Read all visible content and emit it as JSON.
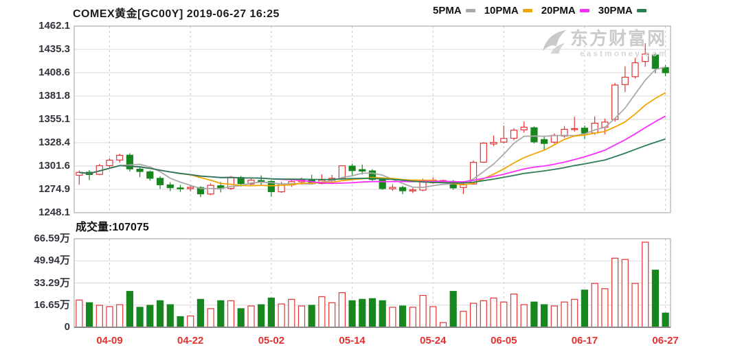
{
  "header": {
    "title": "COMEX黄金[GC00Y] 2019-06-27 16:25"
  },
  "legend": {
    "items": [
      {
        "label": "5PMA",
        "color": "#a9a9a9"
      },
      {
        "label": "10PMA",
        "color": "#f0a500"
      },
      {
        "label": "20PMA",
        "color": "#fb2ffb"
      },
      {
        "label": "30PMA",
        "color": "#2a7d55"
      }
    ]
  },
  "watermark": {
    "brand": "东方财富网",
    "domain": "eastmoney.com"
  },
  "volume_panel": {
    "label": "成交量:107075"
  },
  "price_panel": {
    "y_axis_labels": [
      "1462.1",
      "1435.3",
      "1408.6",
      "1381.8",
      "1355.1",
      "1328.4",
      "1301.6",
      "1274.9",
      "1248.1"
    ]
  },
  "volume_axis_labels": [
    "66.59万",
    "49.94万",
    "33.29万",
    "16.65万",
    "0"
  ],
  "x_axis": {
    "labels": [
      "04-09",
      "04-22",
      "05-02",
      "05-14",
      "05-24",
      "06-05",
      "06-17",
      "06-27"
    ],
    "tick_indices": [
      3,
      11,
      19,
      27,
      35,
      42,
      50,
      58
    ]
  },
  "colors": {
    "up": "#e53333",
    "down": "#17861f",
    "grid": "#d9d9d9",
    "dashed_grid": "#c9c9c9",
    "border": "#9e9e9e",
    "y_label": "#33333d",
    "x_label": "#e43030",
    "watermark": "#cbcbcb"
  },
  "chart_data": {
    "type": "candlestick+volume",
    "symbol": "COMEX黄金[GC00Y]",
    "as_of": "2019-06-27 16:25",
    "price_axis": {
      "min": 1248.1,
      "max": 1462.1,
      "ticks": [
        1462.1,
        1435.3,
        1408.6,
        1381.8,
        1355.1,
        1328.4,
        1301.6,
        1274.9,
        1248.1
      ]
    },
    "volume_axis": {
      "min": 0,
      "max": 66.59,
      "unit": "万",
      "ticks": [
        66.59,
        49.94,
        33.29,
        16.65,
        0
      ]
    },
    "ma_periods": [
      5,
      10,
      20,
      30
    ],
    "latest_volume": 107075,
    "grid": true,
    "candle_fields": [
      "date",
      "open",
      "high",
      "low",
      "close",
      "volume_wan"
    ],
    "candles": [
      [
        "04-04",
        1291.0,
        1296.5,
        1280.1,
        1294.3,
        20.5
      ],
      [
        "04-05",
        1294.5,
        1297.0,
        1285.5,
        1291.8,
        18.5
      ],
      [
        "04-08",
        1292.0,
        1303.9,
        1291.1,
        1301.9,
        16.5
      ],
      [
        "04-09",
        1302.0,
        1310.4,
        1300.1,
        1308.3,
        15.5
      ],
      [
        "04-10",
        1308.5,
        1315.7,
        1305.6,
        1313.9,
        17.0
      ],
      [
        "04-11",
        1314.0,
        1316.3,
        1295.2,
        1298.3,
        27.0
      ],
      [
        "04-12",
        1298.0,
        1300.5,
        1288.8,
        1295.3,
        15.0
      ],
      [
        "04-15",
        1295.0,
        1296.4,
        1284.9,
        1287.6,
        16.5
      ],
      [
        "04-16",
        1287.5,
        1289.8,
        1275.4,
        1280.1,
        20.0
      ],
      [
        "04-17",
        1280.0,
        1283.1,
        1272.7,
        1276.8,
        17.0
      ],
      [
        "04-18",
        1276.5,
        1280.0,
        1271.9,
        1275.7,
        8.0
      ],
      [
        "04-22",
        1275.7,
        1280.3,
        1272.5,
        1277.2,
        8.5
      ],
      [
        "04-23",
        1277.0,
        1278.4,
        1265.9,
        1269.7,
        21.0
      ],
      [
        "04-24",
        1269.5,
        1281.5,
        1268.2,
        1279.4,
        14.0
      ],
      [
        "04-25",
        1279.0,
        1283.3,
        1271.4,
        1275.9,
        20.0
      ],
      [
        "04-26",
        1276.0,
        1290.1,
        1274.2,
        1288.8,
        20.0
      ],
      [
        "04-29",
        1288.5,
        1290.3,
        1278.0,
        1281.4,
        14.0
      ],
      [
        "04-30",
        1281.0,
        1287.7,
        1279.1,
        1285.3,
        16.0
      ],
      [
        "05-01",
        1285.0,
        1291.0,
        1279.8,
        1284.2,
        17.0
      ],
      [
        "05-02",
        1284.0,
        1285.2,
        1266.6,
        1272.2,
        22.0
      ],
      [
        "05-03",
        1272.0,
        1283.4,
        1270.9,
        1281.2,
        17.5
      ],
      [
        "05-06",
        1280.0,
        1286.0,
        1277.7,
        1283.7,
        21.0
      ],
      [
        "05-07",
        1283.5,
        1288.5,
        1280.3,
        1285.6,
        16.0
      ],
      [
        "05-08",
        1285.5,
        1291.7,
        1281.0,
        1281.4,
        16.5
      ],
      [
        "05-09",
        1281.5,
        1292.1,
        1280.5,
        1285.3,
        23.0
      ],
      [
        "05-10",
        1285.0,
        1291.4,
        1280.9,
        1287.4,
        18.5
      ],
      [
        "05-13",
        1287.5,
        1302.0,
        1286.1,
        1301.8,
        26.0
      ],
      [
        "05-14",
        1301.5,
        1304.2,
        1290.2,
        1296.3,
        20.0
      ],
      [
        "05-15",
        1297.5,
        1303.3,
        1291.9,
        1295.8,
        21.0
      ],
      [
        "05-16",
        1296.0,
        1298.0,
        1284.6,
        1286.2,
        21.5
      ],
      [
        "05-17",
        1286.0,
        1288.4,
        1274.3,
        1275.7,
        20.0
      ],
      [
        "05-20",
        1275.5,
        1280.6,
        1273.2,
        1277.1,
        15.0
      ],
      [
        "05-21",
        1277.0,
        1278.9,
        1269.3,
        1273.2,
        16.0
      ],
      [
        "05-22",
        1273.0,
        1276.5,
        1270.6,
        1274.2,
        15.0
      ],
      [
        "05-23",
        1274.0,
        1287.2,
        1272.8,
        1285.4,
        24.0
      ],
      [
        "05-24",
        1282.5,
        1288.5,
        1281.1,
        1285.5,
        15.5
      ],
      [
        "05-28",
        1283.5,
        1286.0,
        1282.0,
        1284.9,
        3.5
      ],
      [
        "05-29",
        1284.0,
        1285.5,
        1274.5,
        1276.5,
        27.0
      ],
      [
        "05-30",
        1277.0,
        1281.5,
        1269.5,
        1280.7,
        12.0
      ],
      [
        "05-31",
        1281.0,
        1308.0,
        1280.5,
        1305.8,
        18.0
      ],
      [
        "06-03",
        1306.0,
        1329.0,
        1305.5,
        1327.9,
        20.0
      ],
      [
        "06-04",
        1327.0,
        1336.5,
        1324.5,
        1328.7,
        22.0
      ],
      [
        "06-05",
        1329.0,
        1348.0,
        1327.5,
        1333.2,
        19.0
      ],
      [
        "06-06",
        1333.5,
        1345.0,
        1331.0,
        1342.7,
        25.0
      ],
      [
        "06-07",
        1343.0,
        1352.5,
        1340.0,
        1346.1,
        17.0
      ],
      [
        "06-10",
        1345.5,
        1347.0,
        1327.5,
        1329.3,
        19.0
      ],
      [
        "06-11",
        1332.0,
        1335.0,
        1319.5,
        1327.5,
        17.0
      ],
      [
        "06-12",
        1329.0,
        1339.0,
        1327.0,
        1336.8,
        16.0
      ],
      [
        "06-13",
        1336.0,
        1347.5,
        1334.0,
        1343.7,
        19.0
      ],
      [
        "06-14",
        1343.5,
        1358.0,
        1341.0,
        1344.5,
        21.0
      ],
      [
        "06-17",
        1345.0,
        1348.0,
        1332.5,
        1339.3,
        28.0
      ],
      [
        "06-18",
        1339.5,
        1358.5,
        1337.5,
        1350.7,
        33.0
      ],
      [
        "06-19",
        1346.0,
        1356.0,
        1338.0,
        1352.0,
        29.0
      ],
      [
        "06-20",
        1355.0,
        1397.0,
        1352.5,
        1394.5,
        52.0
      ],
      [
        "06-21",
        1395.0,
        1416.0,
        1386.5,
        1403.5,
        51.0
      ],
      [
        "06-24",
        1404.0,
        1425.5,
        1402.0,
        1420.0,
        33.0
      ],
      [
        "06-25",
        1421.5,
        1442.4,
        1415.5,
        1430.0,
        64.0
      ],
      [
        "06-26",
        1429.0,
        1431.5,
        1408.0,
        1413.5,
        43.0
      ],
      [
        "06-27",
        1414.5,
        1417.5,
        1404.5,
        1408.6,
        10.7
      ]
    ]
  }
}
